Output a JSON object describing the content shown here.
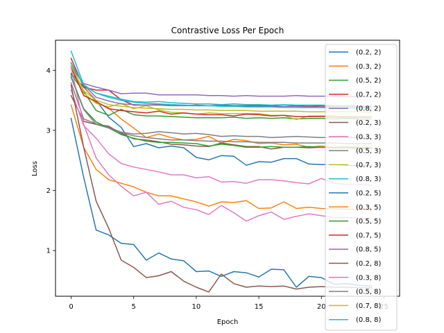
{
  "chart_data": {
    "type": "line",
    "title": "Contrastive Loss Per Epoch",
    "xlabel": "Epoch",
    "ylabel": "Loss",
    "xlim": [
      -1.25,
      26.25
    ],
    "ylim": [
      0.24,
      4.5
    ],
    "xticks": [
      0,
      5,
      10,
      15,
      20,
      25
    ],
    "yticks": [
      1,
      2,
      3,
      4
    ],
    "grid": false,
    "legend_position": "upper-right",
    "x": [
      0,
      1,
      2,
      3,
      4,
      5,
      6,
      7,
      8,
      9,
      10,
      11,
      12,
      13,
      14,
      15,
      16,
      17,
      18,
      19,
      20,
      21,
      22,
      23,
      24
    ],
    "series": [
      {
        "name": "(0.2, 2)",
        "color": "#1f77b4",
        "values": [
          3.95,
          3.72,
          3.5,
          3.22,
          3.05,
          2.73,
          2.78,
          2.71,
          2.74,
          2.71,
          2.55,
          2.51,
          2.58,
          2.57,
          2.42,
          2.48,
          2.47,
          2.53,
          2.53,
          2.44,
          2.43,
          2.43,
          2.42,
          2.41,
          2.41
        ]
      },
      {
        "name": "(0.3, 2)",
        "color": "#ff7f0e",
        "values": [
          4.13,
          3.74,
          3.47,
          3.37,
          3.19,
          3.04,
          2.88,
          2.94,
          2.88,
          2.84,
          2.85,
          2.9,
          2.79,
          2.85,
          2.83,
          2.78,
          2.79,
          2.76,
          2.77,
          2.72,
          2.74,
          2.72,
          2.73,
          2.72,
          2.71
        ]
      },
      {
        "name": "(0.5, 2)",
        "color": "#2ca02c",
        "values": [
          3.93,
          3.65,
          3.33,
          3.25,
          3.35,
          3.26,
          3.24,
          3.24,
          3.23,
          3.22,
          3.21,
          3.21,
          3.21,
          3.22,
          3.2,
          3.21,
          3.2,
          3.21,
          3.19,
          3.2,
          3.2,
          3.19,
          3.2,
          3.19,
          3.19
        ]
      },
      {
        "name": "(0.7, 2)",
        "color": "#d62728",
        "values": [
          4.2,
          3.72,
          3.67,
          3.67,
          3.51,
          3.42,
          3.42,
          3.43,
          3.43,
          3.41,
          3.42,
          3.41,
          3.42,
          3.41,
          3.41,
          3.41,
          3.41,
          3.4,
          3.41,
          3.4,
          3.41,
          3.4,
          3.4,
          3.4,
          3.4
        ]
      },
      {
        "name": "(0.8, 2)",
        "color": "#9467bd",
        "values": [
          4.05,
          3.78,
          3.72,
          3.67,
          3.61,
          3.62,
          3.62,
          3.59,
          3.59,
          3.59,
          3.59,
          3.58,
          3.58,
          3.57,
          3.58,
          3.57,
          3.57,
          3.57,
          3.58,
          3.57,
          3.57,
          3.57,
          3.56,
          3.56,
          3.56
        ]
      },
      {
        "name": "(0.2, 3)",
        "color": "#8c564b",
        "values": [
          3.58,
          3.15,
          3.1,
          3.07,
          2.95,
          2.86,
          2.84,
          2.81,
          2.77,
          2.76,
          2.74,
          2.73,
          2.79,
          2.76,
          2.73,
          2.73,
          2.69,
          2.72,
          2.72,
          2.71,
          2.72,
          2.71,
          2.71,
          2.7,
          2.7
        ]
      },
      {
        "name": "(0.3, 3)",
        "color": "#e377c2",
        "values": [
          3.67,
          3.08,
          2.87,
          2.61,
          2.45,
          2.39,
          2.35,
          2.31,
          2.26,
          2.26,
          2.21,
          2.23,
          2.14,
          2.15,
          2.12,
          2.18,
          2.18,
          2.16,
          2.13,
          2.11,
          2.2,
          2.12,
          2.1,
          2.1,
          2.09
        ]
      },
      {
        "name": "(0.5, 3)",
        "color": "#7f7f7f",
        "values": [
          3.79,
          3.19,
          3.11,
          3.05,
          2.97,
          2.94,
          2.95,
          2.98,
          2.96,
          2.94,
          2.95,
          2.93,
          2.9,
          2.91,
          2.9,
          2.9,
          2.88,
          2.89,
          2.9,
          2.89,
          2.88,
          2.88,
          2.88,
          2.88,
          2.87
        ]
      },
      {
        "name": "(0.7, 3)",
        "color": "#bcbd22",
        "values": [
          4.05,
          3.62,
          3.45,
          3.39,
          3.45,
          3.36,
          3.41,
          3.34,
          3.3,
          3.29,
          3.27,
          3.29,
          3.28,
          3.28,
          3.28,
          3.28,
          3.25,
          3.25,
          3.18,
          3.24,
          3.24,
          3.24,
          3.23,
          3.23,
          3.23
        ]
      },
      {
        "name": "(0.8, 3)",
        "color": "#17becf",
        "values": [
          4.32,
          3.76,
          3.62,
          3.57,
          3.52,
          3.48,
          3.47,
          3.48,
          3.46,
          3.45,
          3.44,
          3.44,
          3.43,
          3.44,
          3.43,
          3.43,
          3.42,
          3.43,
          3.42,
          3.42,
          3.42,
          3.41,
          3.41,
          3.41,
          3.41
        ]
      },
      {
        "name": "(0.2, 5)",
        "color": "#1f77b4",
        "values": [
          3.2,
          2.22,
          1.34,
          1.26,
          1.12,
          1.1,
          0.84,
          0.96,
          0.86,
          0.83,
          0.65,
          0.66,
          0.57,
          0.65,
          0.63,
          0.56,
          0.69,
          0.68,
          0.39,
          0.57,
          0.55,
          0.44,
          0.45,
          0.42,
          0.41
        ]
      },
      {
        "name": "(0.3, 5)",
        "color": "#ff7f0e",
        "values": [
          3.42,
          2.72,
          2.35,
          2.18,
          2.12,
          2.06,
          1.97,
          1.91,
          1.91,
          1.86,
          1.81,
          1.74,
          1.81,
          1.8,
          1.83,
          1.7,
          1.71,
          1.81,
          1.7,
          1.72,
          1.7,
          1.69,
          1.69,
          1.68,
          1.68
        ]
      },
      {
        "name": "(0.5, 5)",
        "color": "#2ca02c",
        "values": [
          3.9,
          3.36,
          3.14,
          3.04,
          2.93,
          2.87,
          2.82,
          2.8,
          2.8,
          2.79,
          2.78,
          2.74,
          2.77,
          2.75,
          2.72,
          2.72,
          2.73,
          2.72,
          2.72,
          2.73,
          2.72,
          2.71,
          2.71,
          2.71,
          2.7
        ]
      },
      {
        "name": "(0.7, 5)",
        "color": "#d62728",
        "values": [
          4.05,
          3.58,
          3.48,
          3.36,
          3.33,
          3.31,
          3.29,
          3.32,
          3.27,
          3.29,
          3.27,
          3.26,
          3.26,
          3.24,
          3.27,
          3.26,
          3.24,
          3.25,
          3.23,
          3.23,
          3.23,
          3.22,
          3.22,
          3.22,
          3.22
        ]
      },
      {
        "name": "(0.8, 5)",
        "color": "#9467bd",
        "values": [
          4.08,
          3.76,
          3.55,
          3.49,
          3.44,
          3.43,
          3.42,
          3.42,
          3.41,
          3.41,
          3.41,
          3.41,
          3.41,
          3.4,
          3.4,
          3.4,
          3.4,
          3.4,
          3.4,
          3.39,
          3.39,
          3.39,
          3.39,
          3.39,
          3.39
        ]
      },
      {
        "name": "(0.2, 8)",
        "color": "#8c564b",
        "values": [
          3.75,
          2.72,
          1.82,
          1.37,
          0.84,
          0.72,
          0.55,
          0.58,
          0.65,
          0.49,
          0.39,
          0.31,
          0.61,
          0.45,
          0.39,
          0.41,
          0.4,
          0.41,
          0.36,
          0.39,
          0.4,
          0.39,
          0.39,
          0.38,
          0.38
        ]
      },
      {
        "name": "(0.3, 8)",
        "color": "#e377c2",
        "values": [
          4.05,
          3.1,
          2.54,
          2.26,
          2.07,
          1.91,
          1.97,
          1.77,
          1.82,
          1.72,
          1.68,
          1.6,
          1.75,
          1.63,
          1.49,
          1.58,
          1.64,
          1.52,
          1.57,
          1.61,
          1.58,
          1.55,
          1.55,
          1.54,
          1.54
        ]
      },
      {
        "name": "(0.5, 8)",
        "color": "#7f7f7f",
        "values": [
          3.88,
          3.35,
          3.1,
          3.04,
          2.96,
          2.91,
          2.88,
          2.86,
          2.84,
          2.84,
          2.83,
          2.82,
          2.82,
          2.81,
          2.81,
          2.8,
          2.8,
          2.8,
          2.79,
          2.79,
          2.79,
          2.79,
          2.78,
          2.78,
          2.78
        ]
      },
      {
        "name": "(0.7, 8)",
        "color": "#bcbd22",
        "values": [
          4.08,
          3.66,
          3.5,
          3.43,
          3.4,
          3.38,
          3.37,
          3.36,
          3.35,
          3.35,
          3.34,
          3.34,
          3.33,
          3.33,
          3.33,
          3.32,
          3.32,
          3.32,
          3.32,
          3.31,
          3.31,
          3.31,
          3.31,
          3.31,
          3.3
        ]
      },
      {
        "name": "(0.8, 8)",
        "color": "#17becf",
        "values": [
          4.12,
          3.75,
          3.62,
          3.55,
          3.5,
          3.47,
          3.45,
          3.44,
          3.43,
          3.42,
          3.41,
          3.41,
          3.4,
          3.4,
          3.39,
          3.39,
          3.39,
          3.38,
          3.38,
          3.38,
          3.38,
          3.37,
          3.37,
          3.37,
          3.37
        ]
      }
    ]
  }
}
